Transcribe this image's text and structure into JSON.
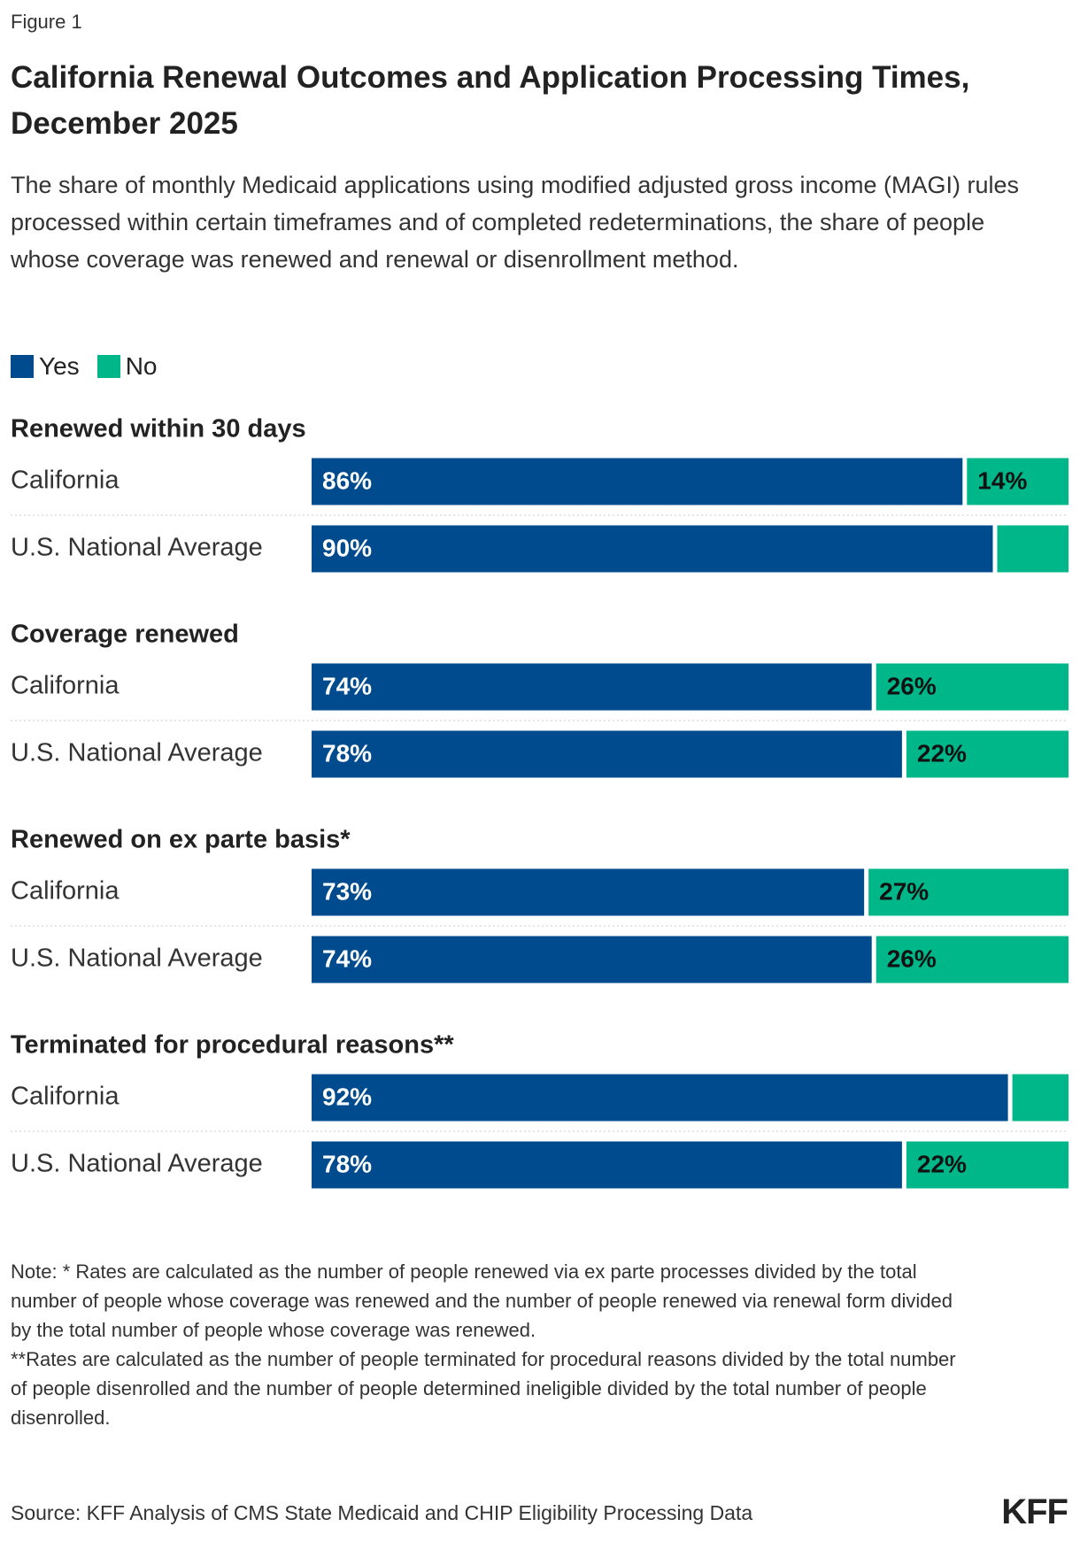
{
  "figure_label": "Figure 1",
  "title": "California Renewal Outcomes and Application Processing Times, December 2025",
  "subtitle": "The share of monthly Medicaid applications using modified adjusted gross income (MAGI) rules processed within certain timeframes and of completed redeterminations, the share of people whose coverage was renewed and renewal or disenrollment method.",
  "chart_data": [
    {
      "type": "bar",
      "stacked": true,
      "orientation": "horizontal",
      "title": "Renewed within 30 days",
      "categories": [
        "California",
        "U.S. National Average"
      ],
      "xlim": [
        0,
        100
      ],
      "series": [
        {
          "name": "Yes",
          "color": "#004b8d",
          "values": [
            86,
            90
          ],
          "value_labels": [
            "86%",
            "90%"
          ]
        },
        {
          "name": "No",
          "color": "#00b78a",
          "values": [
            14,
            10
          ],
          "value_labels": [
            "14%",
            null
          ]
        }
      ]
    },
    {
      "type": "bar",
      "stacked": true,
      "orientation": "horizontal",
      "title": "Coverage renewed",
      "categories": [
        "California",
        "U.S. National Average"
      ],
      "xlim": [
        0,
        100
      ],
      "series": [
        {
          "name": "Yes",
          "color": "#004b8d",
          "values": [
            74,
            78
          ],
          "value_labels": [
            "74%",
            "78%"
          ]
        },
        {
          "name": "No",
          "color": "#00b78a",
          "values": [
            26,
            22
          ],
          "value_labels": [
            "26%",
            "22%"
          ]
        }
      ]
    },
    {
      "type": "bar",
      "stacked": true,
      "orientation": "horizontal",
      "title": "Renewed on ex parte basis*",
      "categories": [
        "California",
        "U.S. National Average"
      ],
      "xlim": [
        0,
        100
      ],
      "series": [
        {
          "name": "Yes",
          "color": "#004b8d",
          "values": [
            73,
            74
          ],
          "value_labels": [
            "73%",
            "74%"
          ]
        },
        {
          "name": "No",
          "color": "#00b78a",
          "values": [
            27,
            26
          ],
          "value_labels": [
            "27%",
            "26%"
          ]
        }
      ]
    },
    {
      "type": "bar",
      "stacked": true,
      "orientation": "horizontal",
      "title": "Terminated for procedural reasons**",
      "categories": [
        "California",
        "U.S. National Average"
      ],
      "xlim": [
        0,
        100
      ],
      "series": [
        {
          "name": "Yes",
          "color": "#004b8d",
          "values": [
            92,
            78
          ],
          "value_labels": [
            "92%",
            "78%"
          ]
        },
        {
          "name": "No",
          "color": "#00b78a",
          "values": [
            8,
            22
          ],
          "value_labels": [
            null,
            "22%"
          ]
        }
      ]
    }
  ],
  "notes": [
    "Note: * Rates are calculated as the number of people renewed via ex parte processes divided by the total number of people whose coverage was renewed and the number of people renewed via renewal form divided by the total number of people whose coverage was renewed.",
    "**Rates are calculated as the number of people terminated for procedural reasons divided by the total number of people disenrolled and the number of people determined ineligible divided by the total number of people disenrolled."
  ],
  "source": "Source: KFF Analysis of CMS State Medicaid and CHIP Eligibility Processing Data",
  "logo": "KFF"
}
